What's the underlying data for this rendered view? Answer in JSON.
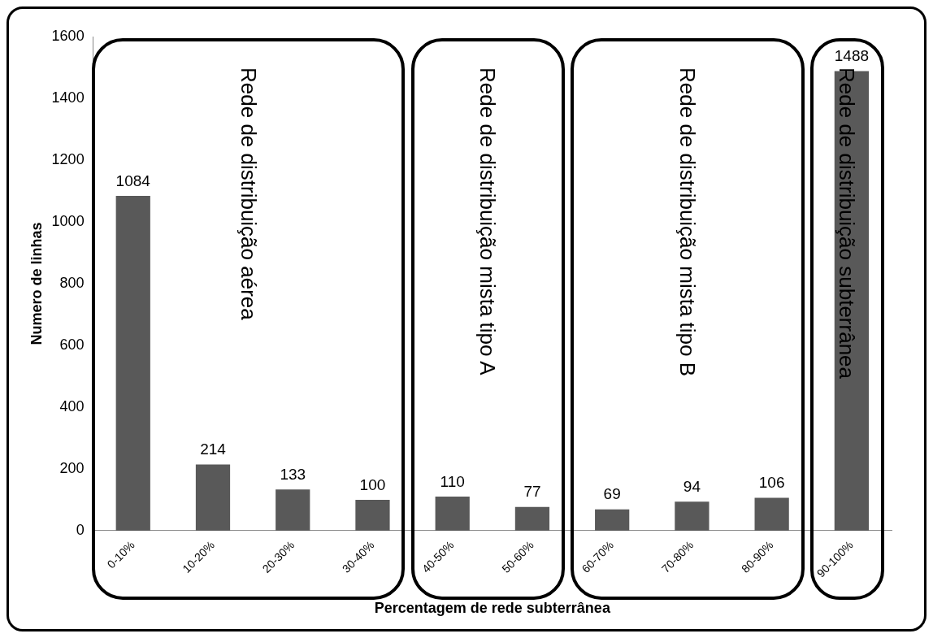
{
  "chart_data": {
    "type": "bar",
    "xlabel": "Percentagem de rede subterrânea",
    "ylabel": "Numero de linhas",
    "categories": [
      "0-10%",
      "10-20%",
      "20-30%",
      "30-40%",
      "40-50%",
      "50-60%",
      "60-70%",
      "70-80%",
      "80-90%",
      "90-100%"
    ],
    "values": [
      1084,
      214,
      133,
      100,
      110,
      77,
      69,
      94,
      106,
      1488
    ],
    "color": "#595959",
    "ylim": [
      0,
      1600
    ],
    "yticks": [
      0,
      200,
      400,
      600,
      800,
      1000,
      1200,
      1400,
      1600
    ],
    "grid": false,
    "data_labels": true,
    "annotations": [
      "Rede de distribuição aérea",
      "Rede de distribuição mista tipo A",
      "Rede de distribuição mista tipo B",
      "Rede de distribuição subterrânea"
    ]
  }
}
